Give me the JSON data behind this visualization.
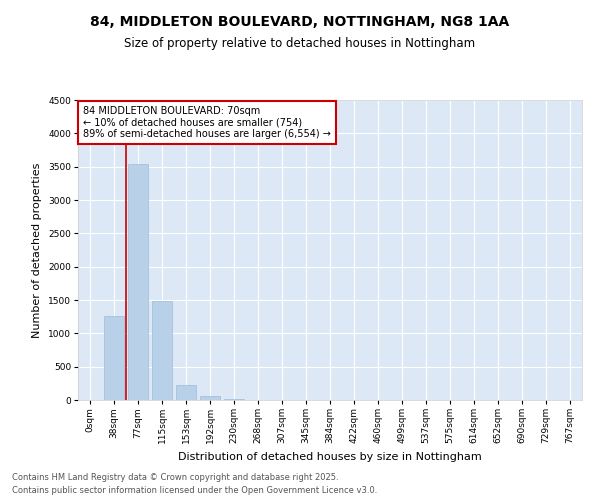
{
  "title": "84, MIDDLETON BOULEVARD, NOTTINGHAM, NG8 1AA",
  "subtitle": "Size of property relative to detached houses in Nottingham",
  "xlabel": "Distribution of detached houses by size in Nottingham",
  "ylabel": "Number of detached properties",
  "categories": [
    "0sqm",
    "38sqm",
    "77sqm",
    "115sqm",
    "153sqm",
    "192sqm",
    "230sqm",
    "268sqm",
    "307sqm",
    "345sqm",
    "384sqm",
    "422sqm",
    "460sqm",
    "499sqm",
    "537sqm",
    "575sqm",
    "614sqm",
    "652sqm",
    "690sqm",
    "729sqm",
    "767sqm"
  ],
  "values": [
    0,
    1260,
    3540,
    1490,
    230,
    65,
    15,
    5,
    2,
    1,
    0,
    0,
    0,
    0,
    0,
    0,
    0,
    0,
    0,
    0,
    0
  ],
  "bar_color": "#b8d0e8",
  "bar_edge_color": "#a0bcd8",
  "annotation_line1": "84 MIDDLETON BOULEVARD: 70sqm",
  "annotation_line2": "← 10% of detached houses are smaller (754)",
  "annotation_line3": "89% of semi-detached houses are larger (6,554) →",
  "annotation_box_color": "#cc0000",
  "property_line_x": 1.5,
  "property_line_color": "#cc0000",
  "ylim": [
    0,
    4500
  ],
  "yticks": [
    0,
    500,
    1000,
    1500,
    2000,
    2500,
    3000,
    3500,
    4000,
    4500
  ],
  "footer_line1": "Contains HM Land Registry data © Crown copyright and database right 2025.",
  "footer_line2": "Contains public sector information licensed under the Open Government Licence v3.0.",
  "bg_color": "#dce8f5",
  "fig_bg_color": "#ffffff",
  "title_fontsize": 10,
  "subtitle_fontsize": 8.5,
  "axis_label_fontsize": 8,
  "tick_fontsize": 6.5,
  "annotation_fontsize": 7,
  "footer_fontsize": 6
}
